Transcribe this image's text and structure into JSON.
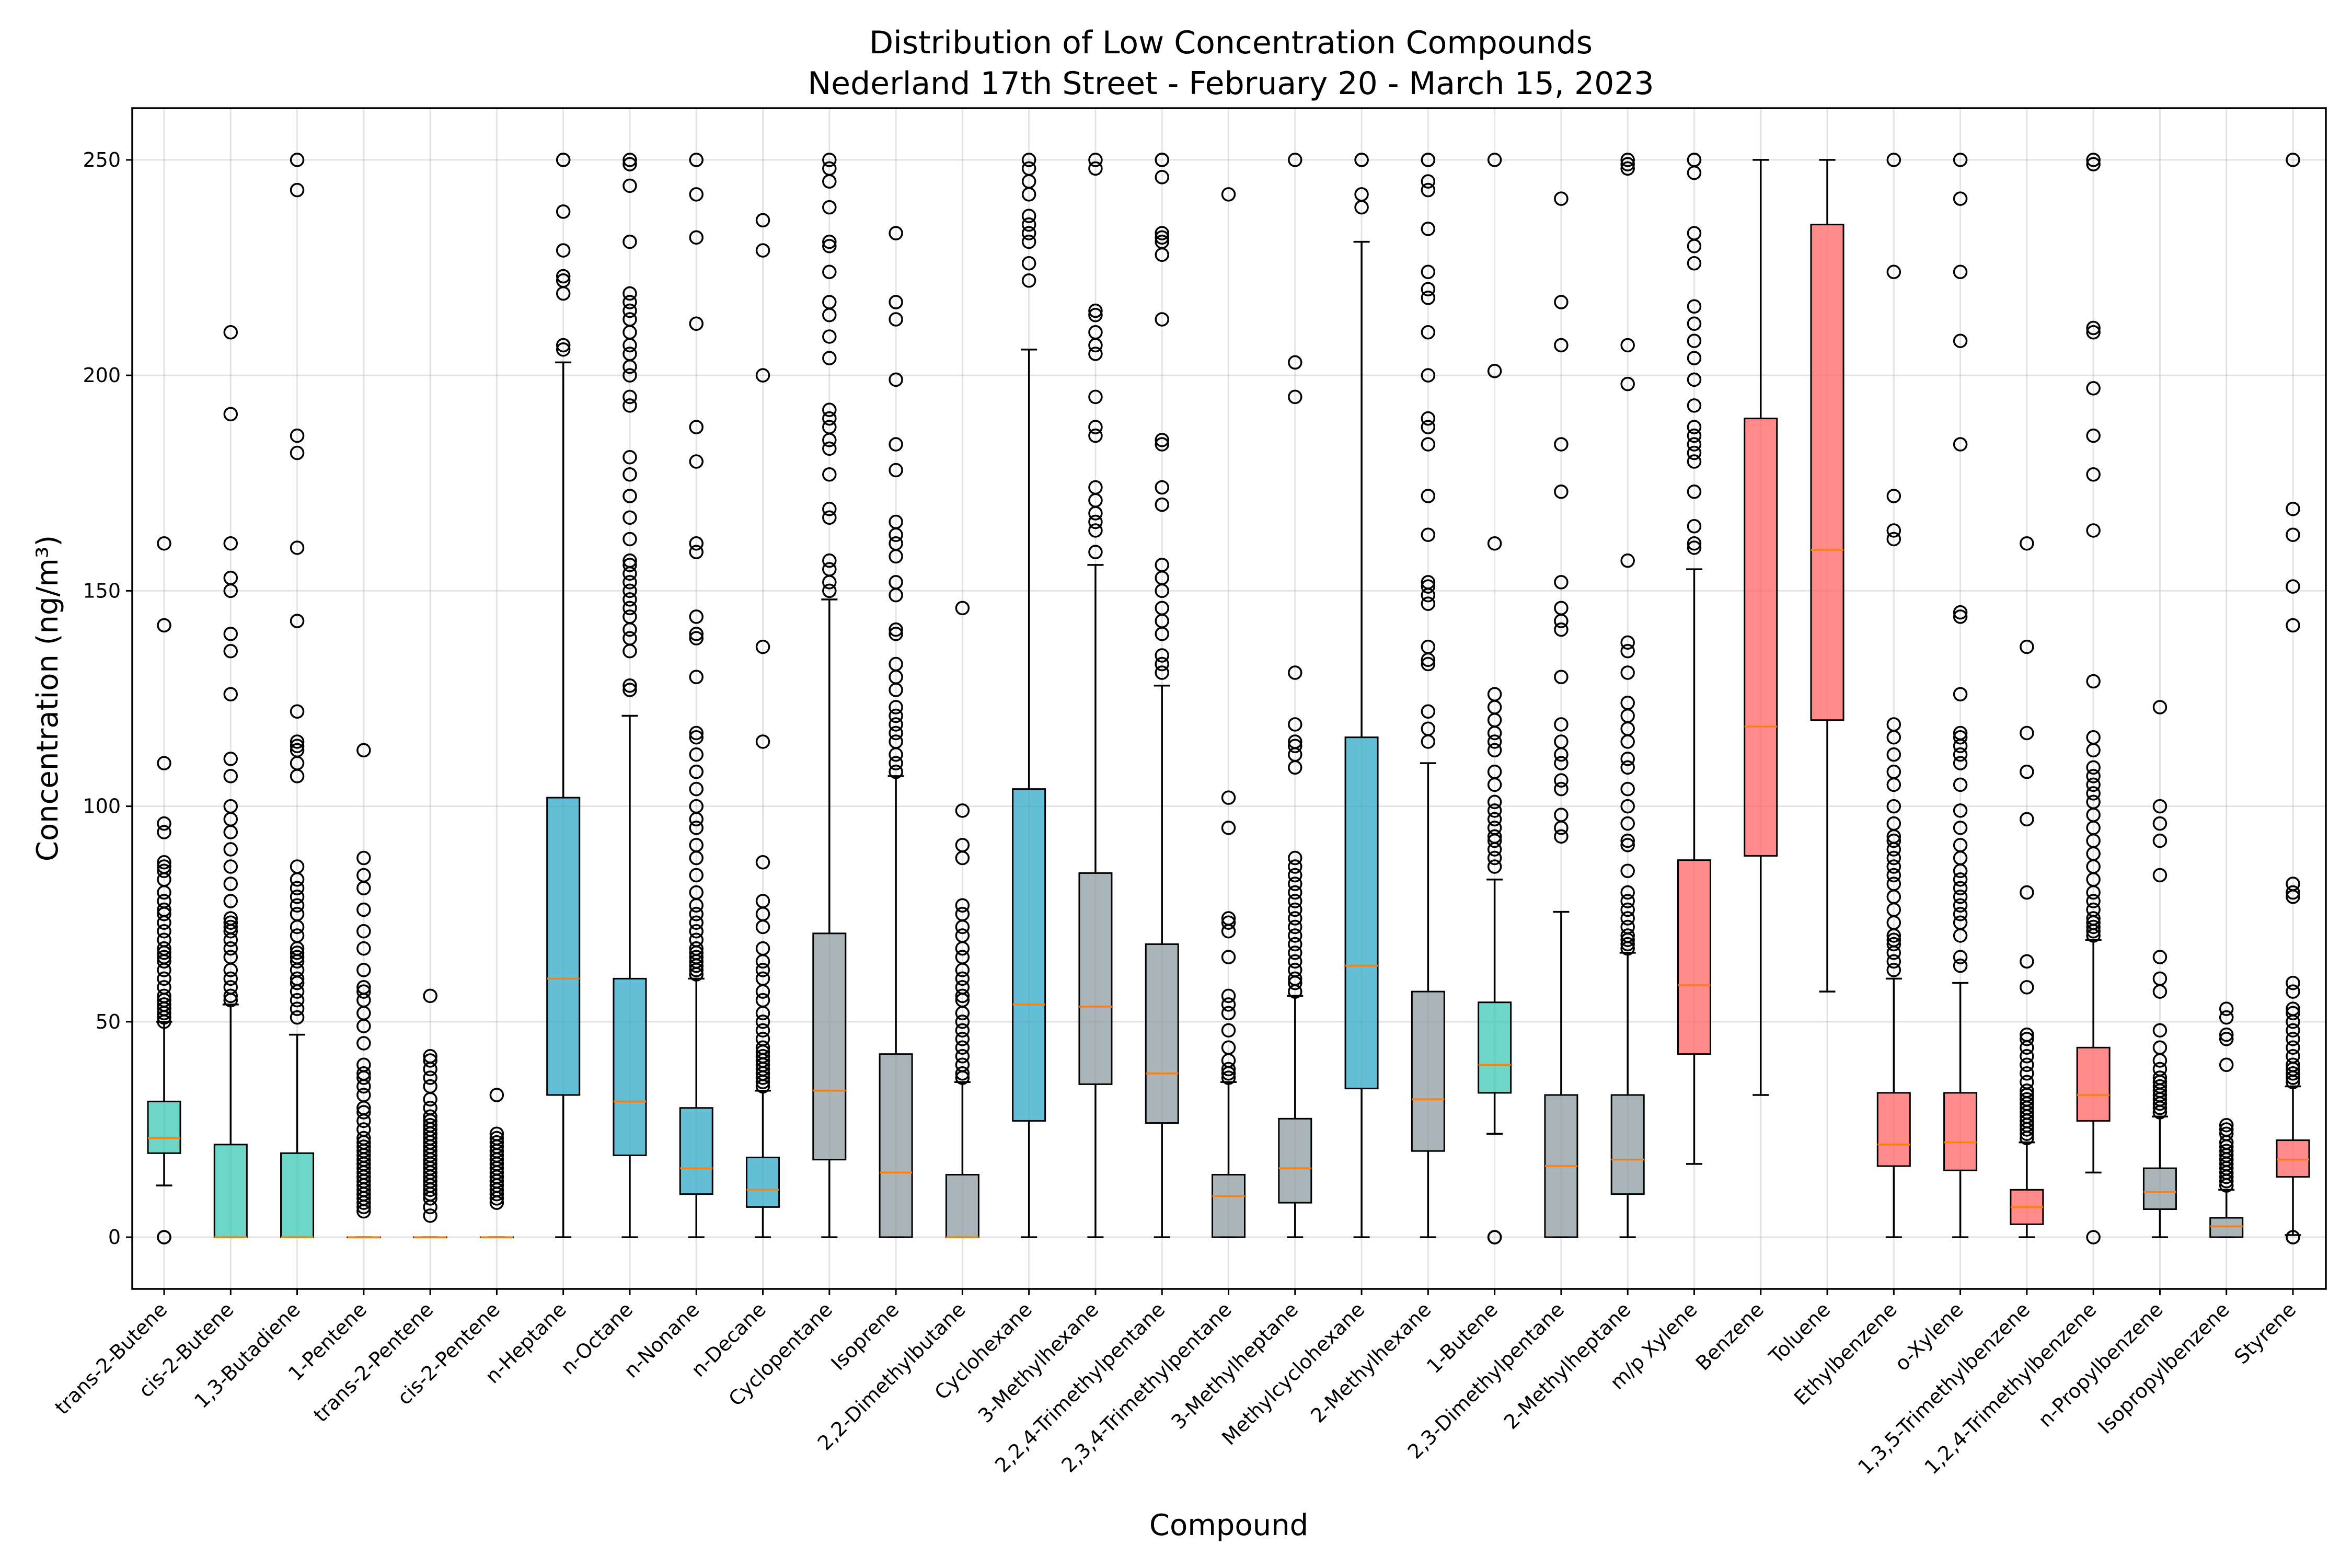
{
  "chart_data": {
    "type": "box",
    "title_lines": [
      "Distribution of Low Concentration Compounds",
      "Nederland 17th Street - February 20 - March 15, 2023"
    ],
    "xlabel": "Compound",
    "ylabel": "Concentration (ng/m³)",
    "ylim": [
      -12,
      262
    ],
    "yticks": [
      0,
      50,
      100,
      150,
      200,
      250
    ],
    "grid": true,
    "group_colors": {
      "alkene": "#3cc8b4",
      "alkane": "#30a8c8",
      "other": "#8c9ca0",
      "aromatic": "#ff6464"
    },
    "categories": [
      {
        "name": "trans-2-Butene",
        "group": "alkene",
        "whisker_low": 12,
        "q1": 19.5,
        "median": 23,
        "q3": 31.5,
        "whisker_high": 50,
        "fliers": [
          0,
          0,
          50,
          51,
          52,
          53,
          54,
          55,
          56,
          58,
          60,
          62,
          64,
          65,
          66,
          67,
          69,
          71,
          73,
          75,
          76,
          78,
          80,
          83,
          85,
          86,
          87,
          94,
          96,
          110,
          142,
          161
        ]
      },
      {
        "name": "cis-2-Butene",
        "group": "alkene",
        "whisker_low": 0,
        "q1": 0,
        "median": 0,
        "q3": 21.5,
        "whisker_high": 54,
        "fliers": [
          55,
          56,
          58,
          60,
          62,
          65,
          67,
          69,
          71,
          72,
          73,
          74,
          78,
          82,
          86,
          90,
          94,
          97,
          100,
          107,
          111,
          126,
          136,
          140,
          150,
          153,
          161,
          191,
          210
        ]
      },
      {
        "name": "1,3-Butadiene",
        "group": "alkene",
        "whisker_low": 0,
        "q1": 0,
        "median": 0,
        "q3": 19.5,
        "whisker_high": 47,
        "fliers": [
          51,
          53,
          55,
          57,
          59,
          60,
          62,
          64,
          65,
          66,
          67,
          70,
          72,
          75,
          77,
          79,
          81,
          83,
          86,
          107,
          110,
          113,
          114,
          115,
          122,
          143,
          160,
          182,
          186,
          243,
          250
        ]
      },
      {
        "name": "1-Pentene",
        "group": "alkene",
        "whisker_low": 0,
        "q1": 0,
        "median": 0,
        "q3": 0,
        "whisker_high": 0,
        "fliers": [
          6,
          7,
          8,
          9,
          10,
          11,
          12,
          13,
          14,
          15,
          16,
          17,
          18,
          19,
          20,
          21,
          22,
          23,
          25,
          27,
          29,
          30,
          33,
          35,
          37,
          38,
          40,
          45,
          49,
          52,
          55,
          57,
          58,
          62,
          67,
          71,
          76,
          81,
          84,
          88,
          113
        ]
      },
      {
        "name": "trans-2-Pentene",
        "group": "alkene",
        "whisker_low": 0,
        "q1": 0,
        "median": 0,
        "q3": 0,
        "whisker_high": 0,
        "fliers": [
          5,
          7,
          9,
          10,
          11,
          12,
          13,
          14,
          15,
          16,
          17,
          18,
          19,
          20,
          21,
          22,
          23,
          24,
          25,
          26,
          27,
          28,
          30,
          32,
          35,
          37,
          39,
          41,
          42,
          56
        ]
      },
      {
        "name": "cis-2-Pentene",
        "group": "alkene",
        "whisker_low": 0,
        "q1": 0,
        "median": 0,
        "q3": 0,
        "whisker_high": 0,
        "fliers": [
          8,
          9,
          10,
          11,
          12,
          13,
          14,
          15,
          16,
          17,
          18,
          19,
          20,
          21,
          22,
          23,
          24,
          33
        ]
      },
      {
        "name": "n-Heptane",
        "group": "alkane",
        "whisker_low": 0,
        "q1": 33,
        "median": 60,
        "q3": 102,
        "whisker_high": 203,
        "fliers": [
          206,
          207,
          219,
          222,
          223,
          229,
          238,
          250,
          250
        ]
      },
      {
        "name": "n-Octane",
        "group": "alkane",
        "whisker_low": 0,
        "q1": 19,
        "median": 31.5,
        "q3": 60,
        "whisker_high": 121,
        "fliers": [
          127,
          128,
          136,
          139,
          141,
          144,
          146,
          148,
          150,
          152,
          154,
          156,
          157,
          162,
          167,
          172,
          177,
          181,
          193,
          195,
          200,
          202,
          205,
          207,
          210,
          213,
          215,
          217,
          219,
          231,
          244,
          249,
          250
        ]
      },
      {
        "name": "n-Nonane",
        "group": "alkane",
        "whisker_low": 0,
        "q1": 10,
        "median": 16,
        "q3": 30,
        "whisker_high": 60,
        "fliers": [
          61,
          62,
          63,
          64,
          65,
          66,
          67,
          69,
          71,
          73,
          75,
          77,
          80,
          84,
          88,
          91,
          95,
          97,
          100,
          104,
          108,
          112,
          116,
          117,
          130,
          139,
          140,
          144,
          159,
          161,
          180,
          188,
          212,
          232,
          242,
          250
        ]
      },
      {
        "name": "n-Decane",
        "group": "alkane",
        "whisker_low": 0,
        "q1": 7,
        "median": 11,
        "q3": 18.5,
        "whisker_high": 34,
        "fliers": [
          35,
          36,
          37,
          38,
          39,
          40,
          41,
          42,
          43,
          44,
          46,
          48,
          50,
          52,
          55,
          57,
          60,
          62,
          64,
          67,
          72,
          75,
          78,
          87,
          115,
          137,
          200,
          229,
          236
        ]
      },
      {
        "name": "Cyclopentane",
        "group": "other",
        "whisker_low": 0,
        "q1": 18,
        "median": 34,
        "q3": 70.5,
        "whisker_high": 148,
        "fliers": [
          150,
          152,
          155,
          157,
          167,
          169,
          177,
          183,
          185,
          188,
          190,
          192,
          204,
          209,
          214,
          217,
          224,
          230,
          231,
          239,
          245,
          248,
          250
        ]
      },
      {
        "name": "Isoprene",
        "group": "other",
        "whisker_low": 0,
        "q1": 0,
        "median": 15,
        "q3": 42.5,
        "whisker_high": 107,
        "fliers": [
          108,
          110,
          112,
          115,
          117,
          119,
          121,
          123,
          127,
          130,
          133,
          140,
          141,
          149,
          152,
          158,
          161,
          163,
          166,
          178,
          184,
          199,
          213,
          217,
          233
        ]
      },
      {
        "name": "2,2-Dimethylbutane",
        "group": "other",
        "whisker_low": 0,
        "q1": 0,
        "median": 0,
        "q3": 14.5,
        "whisker_high": 36,
        "fliers": [
          37,
          38,
          40,
          42,
          44,
          46,
          48,
          50,
          52,
          55,
          56,
          58,
          60,
          62,
          65,
          67,
          70,
          72,
          75,
          77,
          88,
          91,
          99,
          146
        ]
      },
      {
        "name": "Cyclohexane",
        "group": "alkane",
        "whisker_low": 0,
        "q1": 27,
        "median": 54,
        "q3": 104,
        "whisker_high": 206,
        "fliers": [
          222,
          226,
          231,
          233,
          235,
          237,
          242,
          245,
          248,
          250
        ]
      },
      {
        "name": "3-Methylhexane",
        "group": "other",
        "whisker_low": 0,
        "q1": 35.5,
        "median": 53.5,
        "q3": 84.5,
        "whisker_high": 156,
        "fliers": [
          159,
          164,
          166,
          168,
          171,
          174,
          186,
          188,
          195,
          205,
          207,
          210,
          214,
          215,
          248,
          250
        ]
      },
      {
        "name": "2,2,4-Trimethylpentane",
        "group": "other",
        "whisker_low": 0,
        "q1": 26.5,
        "median": 38,
        "q3": 68,
        "whisker_high": 128,
        "fliers": [
          131,
          133,
          135,
          140,
          143,
          146,
          150,
          153,
          156,
          170,
          174,
          184,
          185,
          213,
          228,
          231,
          232,
          233,
          246,
          250,
          250
        ]
      },
      {
        "name": "2,3,4-Trimethylpentane",
        "group": "other",
        "whisker_low": 0,
        "q1": 0,
        "median": 9.5,
        "q3": 14.5,
        "whisker_high": 36,
        "fliers": [
          37,
          38,
          39,
          41,
          44,
          48,
          52,
          54,
          56,
          65,
          71,
          73,
          74,
          95,
          102,
          242
        ]
      },
      {
        "name": "3-Methylheptane",
        "group": "other",
        "whisker_low": 0,
        "q1": 8,
        "median": 16,
        "q3": 27.5,
        "whisker_high": 56,
        "fliers": [
          57,
          59,
          60,
          62,
          64,
          66,
          68,
          70,
          72,
          74,
          76,
          78,
          80,
          82,
          84,
          86,
          88,
          109,
          112,
          114,
          115,
          119,
          131,
          195,
          203,
          250
        ]
      },
      {
        "name": "Methylcyclohexane",
        "group": "alkane",
        "whisker_low": 0,
        "q1": 34.5,
        "median": 63,
        "q3": 116,
        "whisker_high": 231,
        "fliers": [
          239,
          242,
          250,
          250
        ]
      },
      {
        "name": "2-Methylhexane",
        "group": "other",
        "whisker_low": 0,
        "q1": 20,
        "median": 32,
        "q3": 57,
        "whisker_high": 110,
        "fliers": [
          115,
          118,
          122,
          133,
          134,
          137,
          147,
          149,
          151,
          152,
          163,
          172,
          184,
          188,
          190,
          200,
          210,
          218,
          220,
          224,
          234,
          243,
          245,
          250,
          250
        ]
      },
      {
        "name": "1-Butene",
        "group": "alkene",
        "whisker_low": 24,
        "q1": 33.5,
        "median": 40,
        "q3": 54.5,
        "whisker_high": 83,
        "fliers": [
          0,
          0,
          86,
          88,
          90,
          92,
          93,
          95,
          97,
          99,
          101,
          105,
          108,
          113,
          115,
          117,
          120,
          123,
          126,
          161,
          201,
          250
        ]
      },
      {
        "name": "2,3-Dimethylpentane",
        "group": "other",
        "whisker_low": 0,
        "q1": 0,
        "median": 16.5,
        "q3": 33,
        "whisker_high": 75.5,
        "fliers": [
          93,
          95,
          98,
          104,
          106,
          110,
          112,
          115,
          119,
          130,
          141,
          143,
          146,
          152,
          173,
          184,
          207,
          217,
          241
        ]
      },
      {
        "name": "2-Methylheptane",
        "group": "other",
        "whisker_low": 0,
        "q1": 10,
        "median": 18,
        "q3": 33,
        "whisker_high": 66,
        "fliers": [
          67,
          68,
          69,
          70,
          72,
          74,
          76,
          78,
          80,
          85,
          91,
          92,
          96,
          100,
          104,
          109,
          111,
          115,
          118,
          121,
          124,
          131,
          136,
          138,
          157,
          198,
          207,
          248,
          249,
          250
        ]
      },
      {
        "name": "m/p Xylene",
        "group": "aromatic",
        "whisker_low": 17,
        "q1": 42.5,
        "median": 58.5,
        "q3": 87.5,
        "whisker_high": 155,
        "fliers": [
          160,
          161,
          165,
          173,
          180,
          182,
          184,
          186,
          188,
          193,
          199,
          204,
          208,
          212,
          216,
          226,
          230,
          233,
          247,
          250,
          250
        ]
      },
      {
        "name": "Benzene",
        "group": "aromatic",
        "whisker_low": 33,
        "q1": 88.5,
        "median": 118.5,
        "q3": 190,
        "whisker_high": 250,
        "fliers": []
      },
      {
        "name": "Toluene",
        "group": "aromatic",
        "whisker_low": 57,
        "q1": 120,
        "median": 159.5,
        "q3": 235,
        "whisker_high": 250,
        "fliers": []
      },
      {
        "name": "Ethylbenzene",
        "group": "aromatic",
        "whisker_low": 0,
        "q1": 16.5,
        "median": 21.5,
        "q3": 33.5,
        "whisker_high": 60,
        "fliers": [
          62,
          64,
          66,
          68,
          69,
          70,
          73,
          76,
          79,
          82,
          84,
          86,
          88,
          90,
          92,
          93,
          96,
          100,
          105,
          108,
          112,
          116,
          119,
          162,
          164,
          172,
          224,
          250
        ]
      },
      {
        "name": "o-Xylene",
        "group": "aromatic",
        "whisker_low": 0,
        "q1": 15.5,
        "median": 22,
        "q3": 33.5,
        "whisker_high": 59,
        "fliers": [
          63,
          65,
          70,
          73,
          75,
          77,
          79,
          81,
          83,
          85,
          88,
          91,
          95,
          99,
          105,
          110,
          112,
          114,
          116,
          117,
          126,
          144,
          145,
          184,
          208,
          224,
          241,
          250
        ]
      },
      {
        "name": "1,3,5-Trimethylbenzene",
        "group": "aromatic",
        "whisker_low": 0,
        "q1": 3,
        "median": 7,
        "q3": 11,
        "whisker_high": 22,
        "fliers": [
          23,
          24,
          25,
          26,
          27,
          28,
          29,
          30,
          31,
          32,
          33,
          34,
          36,
          38,
          40,
          42,
          44,
          46,
          47,
          58,
          64,
          80,
          97,
          108,
          117,
          137,
          161
        ]
      },
      {
        "name": "1,2,4-Trimethylbenzene",
        "group": "aromatic",
        "whisker_low": 15,
        "q1": 27,
        "median": 33,
        "q3": 44,
        "whisker_high": 69,
        "fliers": [
          0,
          70,
          71,
          72,
          73,
          74,
          76,
          78,
          80,
          83,
          86,
          89,
          92,
          95,
          98,
          101,
          103,
          105,
          107,
          109,
          113,
          116,
          129,
          164,
          177,
          186,
          197,
          210,
          211,
          249,
          250
        ]
      },
      {
        "name": "n-Propylbenzene",
        "group": "other",
        "whisker_low": 0,
        "q1": 6.5,
        "median": 10.5,
        "q3": 16,
        "whisker_high": 28,
        "fliers": [
          29,
          30,
          31,
          32,
          33,
          34,
          35,
          36,
          37,
          39,
          41,
          44,
          48,
          57,
          60,
          65,
          84,
          92,
          96,
          100,
          123
        ]
      },
      {
        "name": "Isopropylbenzene",
        "group": "other",
        "whisker_low": 0,
        "q1": 0,
        "median": 2.5,
        "q3": 4.5,
        "whisker_high": 11,
        "fliers": [
          12,
          13,
          14,
          15,
          16,
          17,
          18,
          19,
          20,
          21,
          22,
          24,
          25,
          26,
          40,
          46,
          47,
          51,
          53
        ]
      },
      {
        "name": "Styrene",
        "group": "aromatic",
        "whisker_low": 0.5,
        "q1": 14,
        "median": 18,
        "q3": 22.5,
        "whisker_high": 35,
        "fliers": [
          0,
          0,
          36,
          37,
          38,
          39,
          40,
          42,
          44,
          46,
          48,
          50,
          52,
          53,
          57,
          59,
          79,
          80,
          82,
          142,
          151,
          163,
          169,
          250
        ]
      }
    ]
  }
}
